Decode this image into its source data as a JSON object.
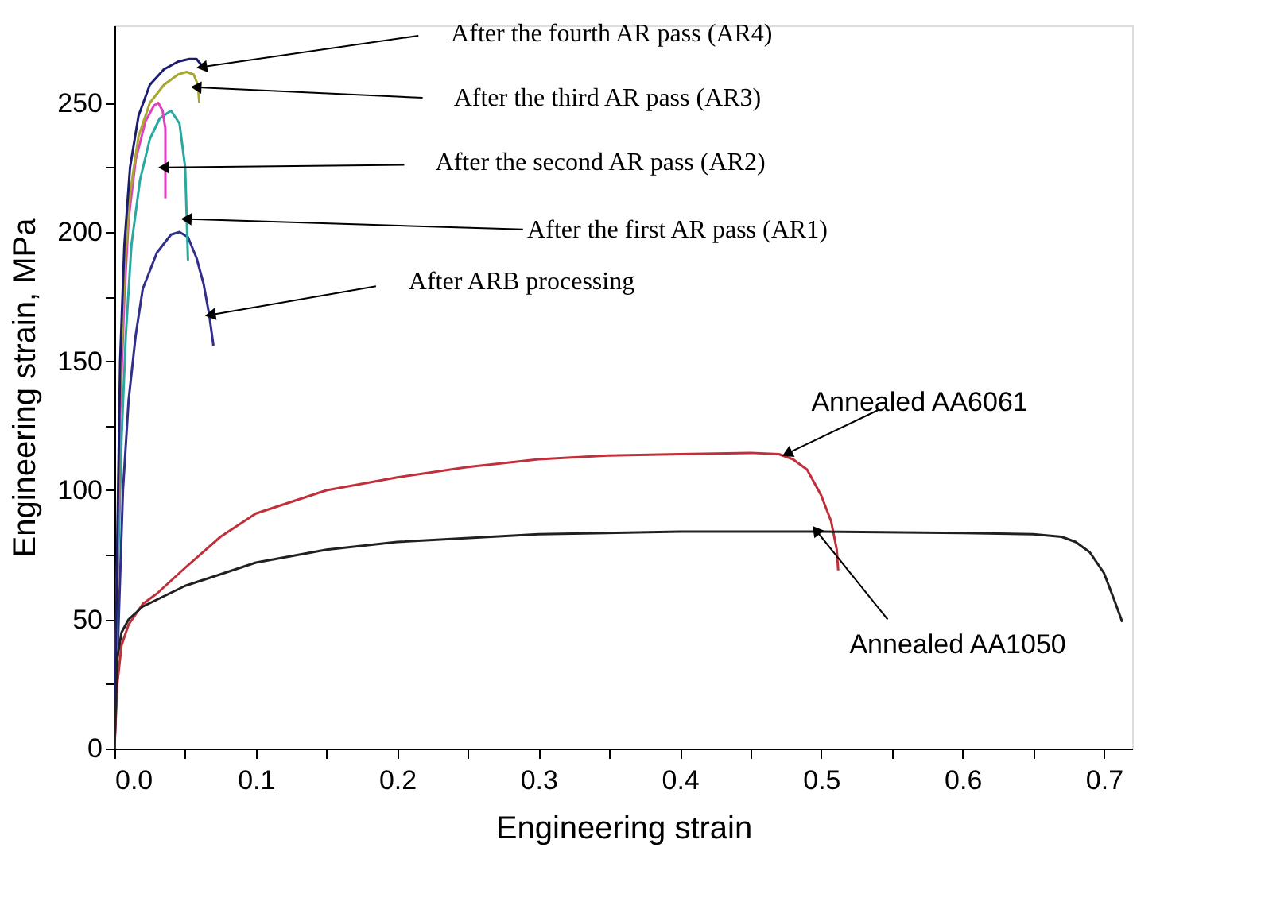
{
  "chart_data": {
    "type": "line",
    "xlabel": "Engineering strain",
    "ylabel": "Engineering strain, MPa",
    "xlim": [
      0,
      0.72
    ],
    "ylim": [
      0,
      280
    ],
    "xticks": [
      {
        "value": 0,
        "label": "0.0"
      },
      {
        "value": 0.05,
        "label": null
      },
      0.1,
      {
        "value": 0.15,
        "label": null
      },
      0.2,
      {
        "value": 0.25,
        "label": null
      },
      0.3,
      {
        "value": 0.35,
        "label": null
      },
      0.4,
      {
        "value": 0.45,
        "label": null
      },
      0.5,
      {
        "value": 0.55,
        "label": null
      },
      0.6,
      {
        "value": 0.65,
        "label": null
      },
      0.7
    ],
    "yticks": [
      0,
      {
        "value": 25,
        "label": null
      },
      50,
      {
        "value": 75,
        "label": null
      },
      100,
      {
        "value": 125,
        "label": null
      },
      150,
      {
        "value": 175,
        "label": null
      },
      200,
      {
        "value": 225,
        "label": null
      },
      250
    ],
    "grid": false,
    "marker": "none",
    "line_style": "solid",
    "series": [
      {
        "color": "#30308a",
        "x": [
          0,
          0.003,
          0.006,
          0.01,
          0.015,
          0.02,
          0.03,
          0.04,
          0.046,
          0.052,
          0.058,
          0.063,
          0.067,
          0.07
        ],
        "values": [
          0,
          50,
          100,
          135,
          160,
          178,
          192,
          199,
          200,
          198,
          190,
          180,
          168,
          156
        ]
      },
      {
        "color": "#2aa8a0",
        "x": [
          0,
          0.002,
          0.005,
          0.008,
          0.012,
          0.018,
          0.025,
          0.032,
          0.04,
          0.046,
          0.05,
          0.052
        ],
        "values": [
          0,
          60,
          120,
          160,
          195,
          220,
          236,
          244,
          247,
          242,
          225,
          189
        ]
      },
      {
        "color": "#e040c0",
        "x": [
          0,
          0.002,
          0.004,
          0.007,
          0.01,
          0.015,
          0.022,
          0.028,
          0.031,
          0.034,
          0.036,
          0.036
        ],
        "values": [
          0,
          70,
          130,
          175,
          205,
          228,
          243,
          249,
          250,
          247,
          240,
          213
        ]
      },
      {
        "color": "#a8a830",
        "x": [
          0,
          0.002,
          0.004,
          0.007,
          0.011,
          0.017,
          0.025,
          0.035,
          0.045,
          0.051,
          0.056,
          0.059,
          0.06
        ],
        "values": [
          0,
          75,
          140,
          185,
          215,
          237,
          250,
          257,
          261,
          262,
          261,
          257,
          250
        ]
      },
      {
        "color": "#1c1c70",
        "x": [
          0,
          0.002,
          0.004,
          0.007,
          0.011,
          0.017,
          0.025,
          0.035,
          0.045,
          0.053,
          0.058,
          0.061,
          0.063
        ],
        "values": [
          0,
          80,
          150,
          195,
          225,
          245,
          257,
          263,
          266,
          267,
          267,
          265,
          263
        ]
      },
      {
        "color": "#c0303a",
        "x": [
          0,
          0.002,
          0.005,
          0.01,
          0.02,
          0.03,
          0.05,
          0.075,
          0.1,
          0.15,
          0.2,
          0.25,
          0.3,
          0.35,
          0.4,
          0.45,
          0.47,
          0.48,
          0.49,
          0.5,
          0.507,
          0.511,
          0.512
        ],
        "values": [
          0,
          25,
          40,
          48,
          56,
          60,
          70,
          82,
          91,
          100,
          105,
          109,
          112,
          113.5,
          114,
          114.5,
          114,
          112,
          108,
          98,
          88,
          77,
          69
        ]
      },
      {
        "color": "#202020",
        "x": [
          0,
          0.002,
          0.005,
          0.01,
          0.02,
          0.05,
          0.1,
          0.15,
          0.2,
          0.3,
          0.4,
          0.5,
          0.6,
          0.65,
          0.67,
          0.68,
          0.69,
          0.7,
          0.707,
          0.713
        ],
        "values": [
          0,
          35,
          45,
          50,
          55,
          63,
          72,
          77,
          80,
          83,
          84,
          84,
          83.5,
          83,
          82,
          80,
          76,
          68,
          58,
          49
        ]
      }
    ],
    "annotations": [
      {
        "text": "After the fourth AR pass (AR4)",
        "x": 0.063,
        "y": 264
      },
      {
        "text": "After the third AR pass (AR3)",
        "x": 0.059,
        "y": 256
      },
      {
        "text": "After the second AR pass (AR2)",
        "x": 0.036,
        "y": 225
      },
      {
        "text": "After the first AR pass (AR1)",
        "x": 0.052,
        "y": 205
      },
      {
        "text": "After ARB processing",
        "x": 0.069,
        "y": 168
      },
      {
        "text": "Annealed AA6061",
        "x": 0.477,
        "y": 114.5
      },
      {
        "text": "Annealed AA1050",
        "x": 0.497,
        "y": 84
      }
    ]
  }
}
